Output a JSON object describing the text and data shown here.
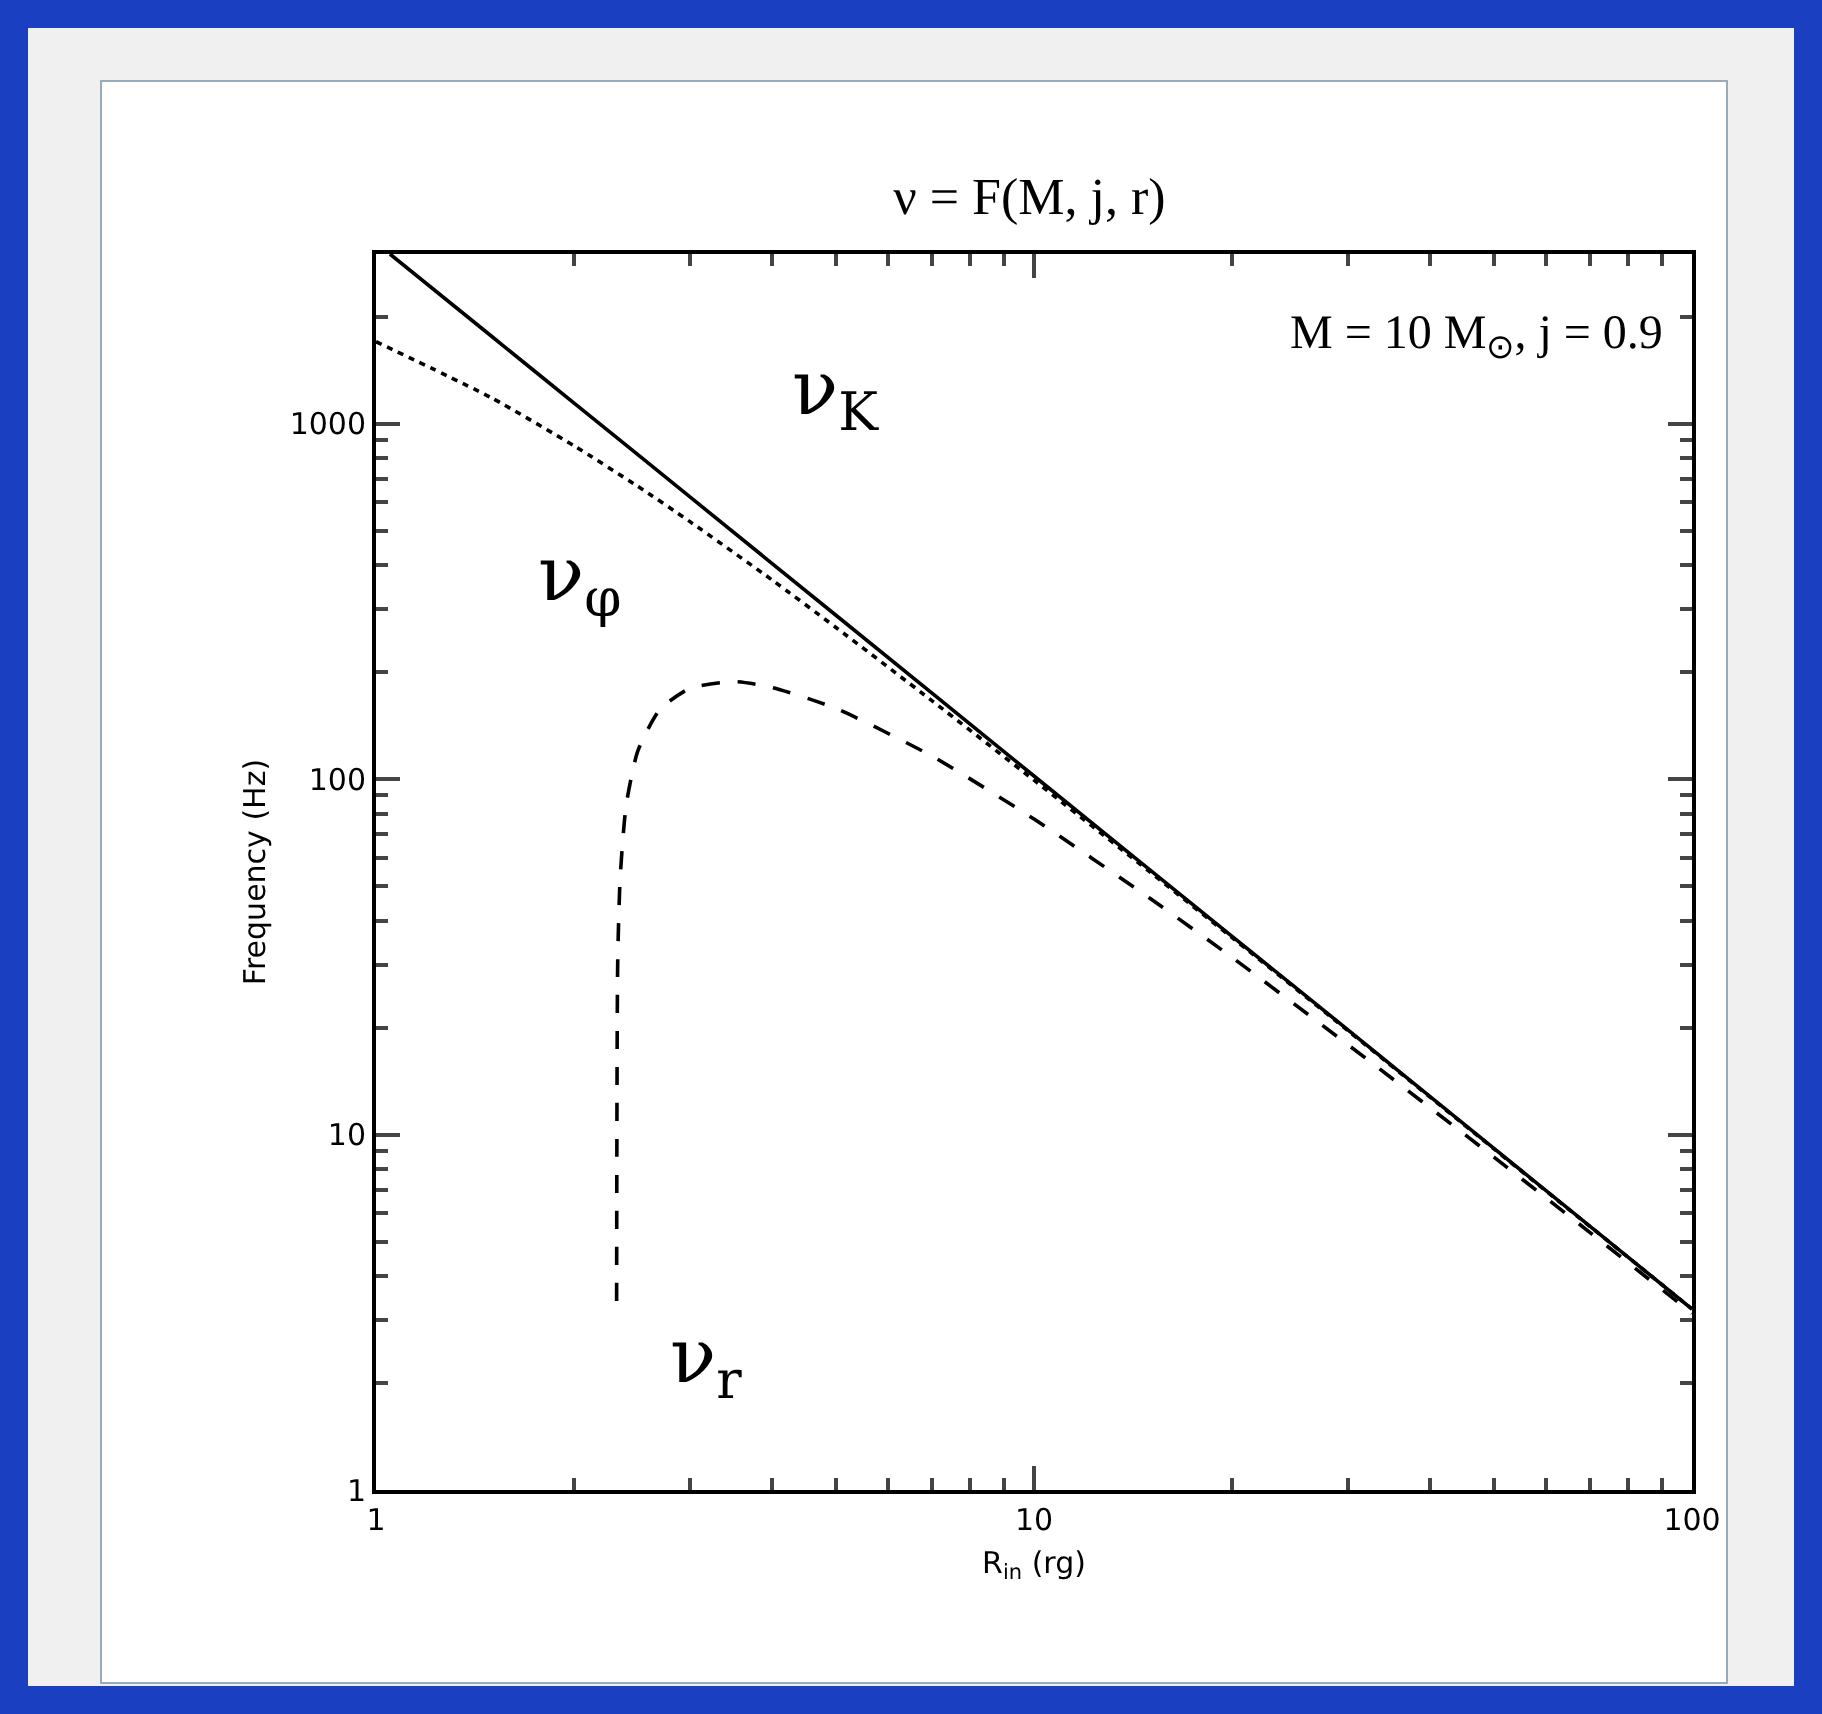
{
  "chart_data": {
    "type": "line",
    "title": "ν = F(M, j, r)",
    "xlabel": "R$_{in}$ (rg)",
    "ylabel": "Frequency (Hz)",
    "annotations": [
      "M = 10 M$_{⊙}$, j = 0.9"
    ],
    "log": "xy",
    "xlim": [
      1,
      100
    ],
    "ylim": [
      1,
      3000
    ],
    "xticks": [
      1,
      10,
      100
    ],
    "yticks": [
      1,
      10,
      100,
      1000
    ],
    "legend": false,
    "grid": false,
    "series": [
      {
        "name": "ν$_{K}$",
        "color": "#000000",
        "line_style": "solid",
        "x": [
          1.05,
          1.5,
          2,
          3,
          5,
          10,
          20,
          30,
          50,
          100
        ],
        "values": [
          3000,
          1758,
          1142,
          622,
          289,
          102,
          36.1,
          19.7,
          9.14,
          3.23
        ]
      },
      {
        "name": "ν$_{φ}$",
        "color": "#000000",
        "line_style": "dotted",
        "x": [
          1,
          1.5,
          2,
          2.5,
          3,
          4,
          5,
          7,
          10,
          15,
          20,
          30,
          50,
          70,
          100
        ],
        "values": [
          1700,
          1180,
          866,
          666,
          530,
          363,
          267,
          166,
          99.3,
          54.8,
          35.8,
          19.6,
          9.11,
          5.51,
          3.23
        ]
      },
      {
        "name": "ν$_{r}$",
        "color": "#000000",
        "line_style": "dashed",
        "x": [
          2.321,
          2.33,
          2.35,
          2.4,
          2.5,
          2.7,
          3,
          3.5,
          4,
          5,
          7,
          10,
          15,
          20,
          30,
          50,
          70,
          100
        ],
        "values": [
          3.4,
          30.7,
          52.7,
          84.5,
          120,
          157,
          180,
          188,
          181,
          158,
          116,
          77.2,
          46.2,
          31.5,
          17.9,
          8.64,
          5.3,
          3.14
        ]
      }
    ]
  }
}
